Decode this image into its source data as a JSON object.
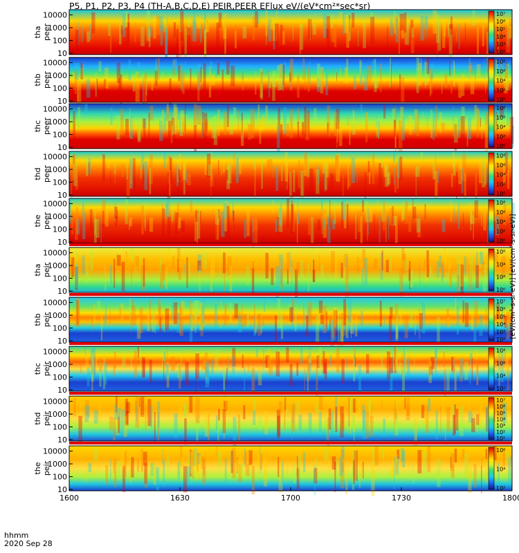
{
  "figure": {
    "title": "P5, P1, P2, P3, P4 (TH-A,B,C,D,E) PEIR,PEER EFlux eV/(eV*cm²*sec*sr)",
    "time_axis_label": "hhmm",
    "date_label": "2020 Sep 28",
    "colorbar_unit": "[eV/(cm²-s-sr-eV)] [eV/(cm²-s-sr-eV)]"
  },
  "chart_data": {
    "type": "heatmap",
    "x_ticks": [
      "1600",
      "1630",
      "1700",
      "1730",
      "1800"
    ],
    "x_range": [
      "1600",
      "1800"
    ],
    "y_scale": "log",
    "y_ticks": [
      "10",
      "100",
      "1000",
      "10000"
    ],
    "panels": [
      {
        "name_top": "tha",
        "name_bottom": "peer",
        "cbar_ticks": [
          "10⁷",
          "10⁶",
          "10⁵",
          "10⁴",
          "10³",
          "10²"
        ]
      },
      {
        "name_top": "thb",
        "name_bottom": "peer",
        "cbar_ticks": [
          "10⁸",
          "10⁶",
          "10⁴",
          "10²",
          "10⁰"
        ]
      },
      {
        "name_top": "thc",
        "name_bottom": "peer",
        "cbar_ticks": [
          "10⁸",
          "10⁶",
          "10⁴",
          "10²",
          "10⁰"
        ]
      },
      {
        "name_top": "thd",
        "name_bottom": "peer",
        "cbar_ticks": [
          "10⁸",
          "10⁶",
          "10⁴",
          "10²",
          "10⁰"
        ]
      },
      {
        "name_top": "the",
        "name_bottom": "peer",
        "cbar_ticks": [
          "10⁸",
          "10⁶",
          "10⁴",
          "10²",
          "10⁰"
        ]
      },
      {
        "name_top": "tha",
        "name_bottom": "peir",
        "cbar_ticks": [
          "10⁶",
          "10⁴",
          "10²",
          "10⁰"
        ]
      },
      {
        "name_top": "thb",
        "name_bottom": "peir",
        "cbar_ticks": [
          "10⁷",
          "10⁶",
          "10⁵",
          "10⁴",
          "10³",
          "10²"
        ]
      },
      {
        "name_top": "thc",
        "name_bottom": "peir",
        "cbar_ticks": [
          "10⁸",
          "10⁶",
          "10⁴",
          "10²"
        ]
      },
      {
        "name_top": "thd",
        "name_bottom": "peir",
        "cbar_ticks": [
          "10⁷",
          "10⁶",
          "10⁵",
          "10⁴",
          "10³",
          "10²",
          "10¹"
        ]
      },
      {
        "name_top": "the",
        "name_bottom": "peir",
        "cbar_ticks": [
          "10⁶",
          "10⁴",
          "10²"
        ]
      }
    ]
  }
}
